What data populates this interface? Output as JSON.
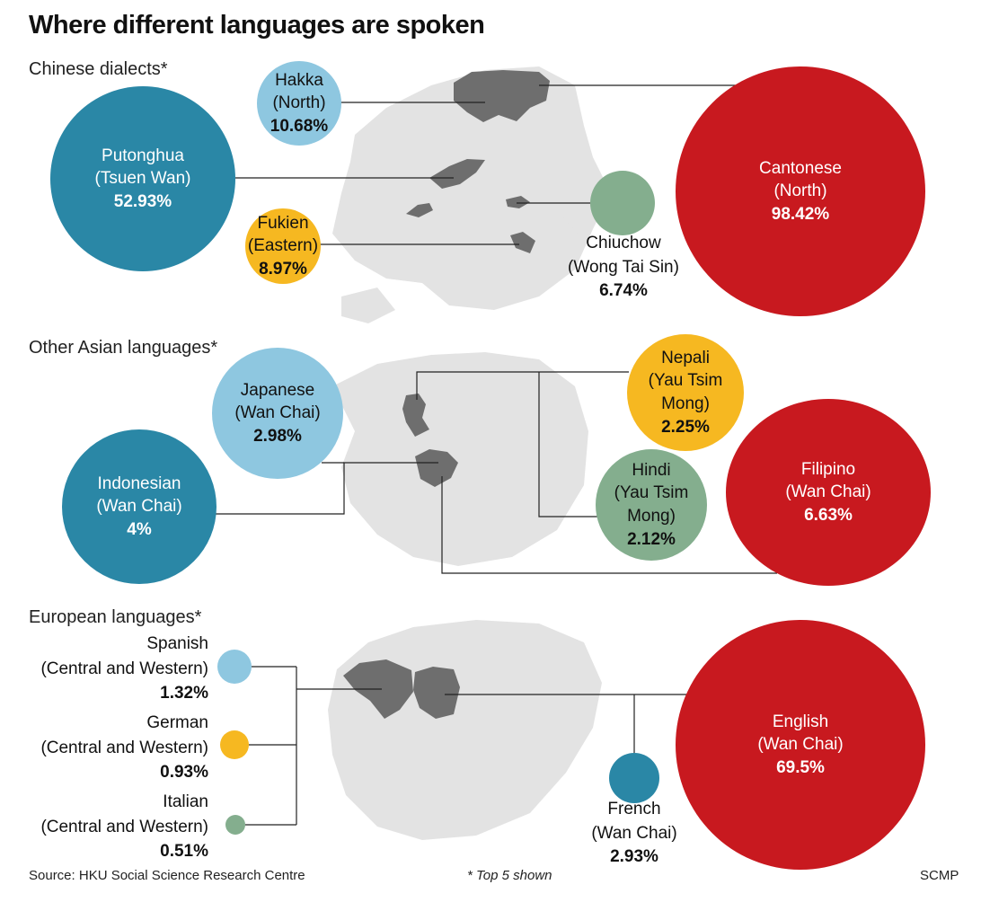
{
  "title": "Where different languages are spoken",
  "sections": {
    "chinese": "Chinese dialects*",
    "asian": "Other Asian languages*",
    "european": "European languages*"
  },
  "colors": {
    "blue": "#2a87a6",
    "light_blue": "#8ec7e0",
    "yellow": "#f6b821",
    "green": "#84ae8e",
    "red": "#c8191f",
    "map_gray": "#e3e3e3",
    "map_dark": "#6e6e6e"
  },
  "chinese": {
    "hakka": {
      "name": "Hakka",
      "district": "(North)",
      "pct": "10.68%"
    },
    "putonghua": {
      "name": "Putonghua",
      "district": "(Tsuen Wan)",
      "pct": "52.93%"
    },
    "fukien": {
      "name": "Fukien",
      "district": "(Eastern)",
      "pct": "8.97%"
    },
    "chiuchow": {
      "name": "Chiuchow",
      "district": "(Wong Tai Sin)",
      "pct": "6.74%"
    },
    "cantonese": {
      "name": "Cantonese",
      "district": "(North)",
      "pct": "98.42%"
    }
  },
  "asian": {
    "japanese": {
      "name": "Japanese",
      "district": "(Wan Chai)",
      "pct": "2.98%"
    },
    "indonesian": {
      "name": "Indonesian",
      "district": "(Wan Chai)",
      "pct": "4%"
    },
    "nepali": {
      "name": "Nepali",
      "district": "(Yau Tsim Mong)",
      "pct": "2.25%"
    },
    "hindi": {
      "name": "Hindi",
      "district": "(Yau Tsim Mong)",
      "pct": "2.12%"
    },
    "filipino": {
      "name": "Filipino",
      "district": "(Wan Chai)",
      "pct": "6.63%"
    }
  },
  "european": {
    "spanish": {
      "name": "Spanish",
      "district": "(Central and Western)",
      "pct": "1.32%"
    },
    "german": {
      "name": "German",
      "district": "(Central and Western)",
      "pct": "0.93%"
    },
    "italian": {
      "name": "Italian",
      "district": "(Central and Western)",
      "pct": "0.51%"
    },
    "french": {
      "name": "French",
      "district": "(Wan Chai)",
      "pct": "2.93%"
    },
    "english": {
      "name": "English",
      "district": "(Wan Chai)",
      "pct": "69.5%"
    }
  },
  "footer": {
    "source": "Source: HKU Social Science Research Centre",
    "note": "* Top 5 shown",
    "credit": "SCMP"
  }
}
